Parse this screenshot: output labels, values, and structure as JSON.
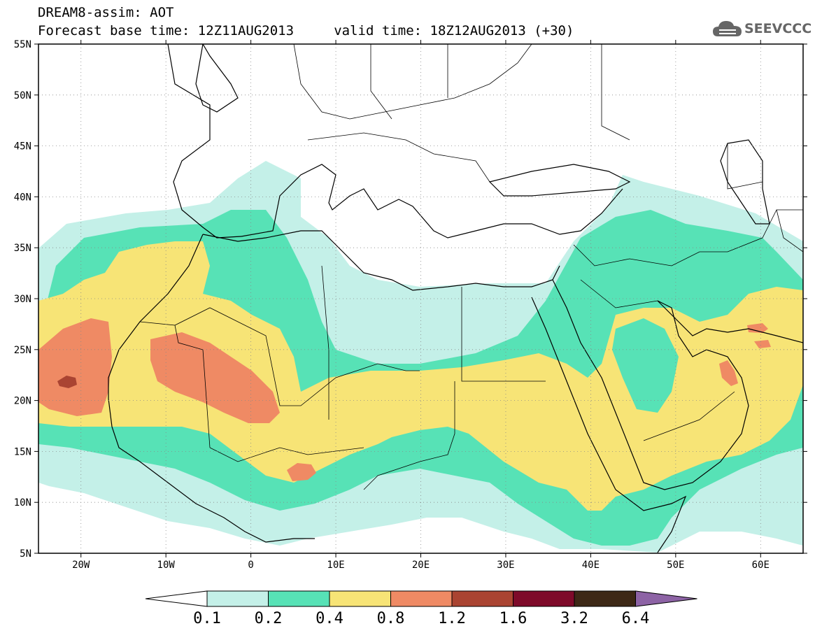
{
  "header": {
    "line1": "DREAM8-assim: AOT",
    "line2": "Forecast base time: 12Z11AUG2013     valid time: 18Z12AUG2013 (+30)"
  },
  "logo": {
    "text": "SEEVCCC",
    "icon": "cloud-icon",
    "color": "#666666"
  },
  "map": {
    "variable": "AOT",
    "lon_range": [
      -25,
      65
    ],
    "lat_range": [
      5,
      55
    ],
    "grid": "dotted",
    "lat_labels": [
      "55N",
      "50N",
      "45N",
      "40N",
      "35N",
      "30N",
      "25N",
      "20N",
      "15N",
      "10N",
      "5N"
    ],
    "lon_labels": [
      "20W",
      "10W",
      "0",
      "10E",
      "20E",
      "30E",
      "40E",
      "50E",
      "60E"
    ]
  },
  "colorbar": {
    "labels": [
      "0.1",
      "0.2",
      "0.4",
      "0.8",
      "1.2",
      "1.6",
      "3.2",
      "6.4"
    ],
    "colors": [
      "#ffffff",
      "#c4f0e8",
      "#57e2b6",
      "#f7e476",
      "#ef8a64",
      "#aa4432",
      "#7e0a2a",
      "#3d2816",
      "#8d63a5"
    ]
  }
}
